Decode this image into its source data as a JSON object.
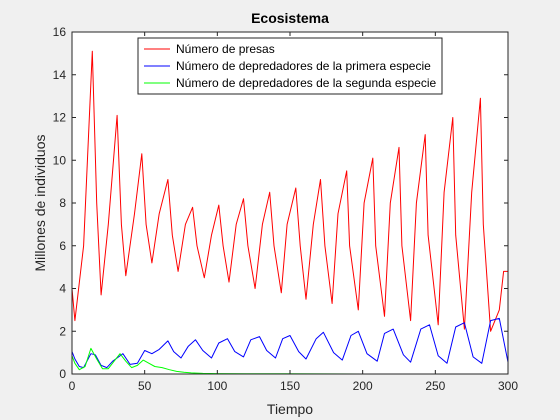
{
  "chart_data": {
    "type": "line",
    "title": "Ecosistema",
    "xlabel": "Tiempo",
    "ylabel": "Millones de individuos",
    "xlim": [
      0,
      300
    ],
    "ylim": [
      0,
      16
    ],
    "xticks": [
      "0",
      "50",
      "100",
      "150",
      "200",
      "250",
      "300"
    ],
    "yticks": [
      "0",
      "2",
      "4",
      "6",
      "8",
      "10",
      "12",
      "14",
      "16"
    ],
    "grid": false,
    "legend_position": "top",
    "series": [
      {
        "name": "Número de presas",
        "color": "#ff0000",
        "x": [
          0,
          2,
          8,
          14,
          17,
          20,
          25,
          31,
          34,
          37,
          43,
          48,
          51,
          55,
          60,
          66,
          69,
          73,
          78,
          83,
          86,
          91,
          96,
          101,
          104,
          108,
          113,
          118,
          121,
          126,
          131,
          136,
          139,
          144,
          148,
          154,
          157,
          161,
          166,
          171,
          174,
          179,
          183,
          189,
          191,
          197,
          201,
          207,
          209,
          215,
          219,
          225,
          227,
          233,
          237,
          243,
          245,
          252,
          256,
          262,
          264,
          270,
          275,
          281,
          283,
          288,
          294,
          297,
          300
        ],
        "y": [
          4.0,
          2.5,
          6.0,
          15.1,
          8.0,
          3.7,
          7.0,
          12.1,
          7.0,
          4.6,
          7.5,
          10.3,
          7.0,
          5.2,
          7.5,
          9.1,
          6.5,
          4.8,
          7.0,
          7.8,
          6.0,
          4.5,
          6.5,
          7.9,
          6.0,
          4.3,
          7.0,
          8.2,
          6.0,
          4.0,
          7.0,
          8.5,
          6.0,
          3.8,
          7.0,
          8.7,
          6.0,
          3.5,
          7.0,
          9.1,
          6.0,
          3.3,
          7.5,
          9.5,
          6.0,
          3.0,
          8.0,
          10.1,
          6.0,
          2.7,
          8.0,
          10.6,
          6.0,
          2.5,
          8.0,
          11.2,
          6.5,
          2.3,
          8.5,
          12.0,
          6.5,
          2.1,
          8.5,
          12.9,
          7.0,
          2.0,
          3.0,
          4.8,
          4.8
        ]
      },
      {
        "name": "Número de depredadores de la primera especie",
        "color": "#0000ff",
        "x": [
          0,
          2,
          5,
          8,
          13,
          16,
          20,
          24,
          28,
          31,
          35,
          40,
          45,
          50,
          55,
          60,
          66,
          70,
          75,
          80,
          85,
          90,
          96,
          101,
          107,
          112,
          118,
          123,
          129,
          134,
          140,
          145,
          150,
          156,
          161,
          168,
          173,
          180,
          186,
          192,
          197,
          203,
          210,
          215,
          221,
          228,
          233,
          240,
          246,
          252,
          258,
          264,
          270,
          276,
          282,
          288,
          294,
          300
        ],
        "y": [
          1.05,
          0.7,
          0.35,
          0.3,
          0.95,
          0.9,
          0.4,
          0.3,
          0.6,
          0.75,
          0.95,
          0.45,
          0.5,
          1.1,
          0.95,
          1.15,
          1.55,
          1.05,
          0.75,
          1.3,
          1.6,
          1.1,
          0.75,
          1.45,
          1.65,
          1.05,
          0.8,
          1.6,
          1.75,
          1.1,
          0.75,
          1.65,
          1.8,
          1.05,
          0.7,
          1.65,
          1.95,
          1.0,
          0.65,
          1.8,
          2.0,
          0.95,
          0.6,
          1.9,
          2.1,
          0.9,
          0.55,
          2.1,
          2.3,
          0.85,
          0.5,
          2.2,
          2.4,
          0.8,
          0.5,
          2.5,
          2.6,
          0.55
        ]
      },
      {
        "name": "Número de depredadores de la segunda especie",
        "color": "#00ff00",
        "x": [
          0,
          2,
          5,
          9,
          13,
          17,
          21,
          25,
          29,
          33,
          37,
          41,
          45,
          49,
          53,
          57,
          62,
          67,
          72,
          77,
          82,
          90,
          100,
          120,
          150,
          200,
          250,
          300
        ],
        "y": [
          0.85,
          0.5,
          0.2,
          0.35,
          1.2,
          0.7,
          0.25,
          0.25,
          0.6,
          0.95,
          0.6,
          0.3,
          0.4,
          0.65,
          0.5,
          0.35,
          0.3,
          0.2,
          0.12,
          0.08,
          0.05,
          0.03,
          0.02,
          0.01,
          0.01,
          0.0,
          0.0,
          0.0
        ]
      }
    ]
  }
}
